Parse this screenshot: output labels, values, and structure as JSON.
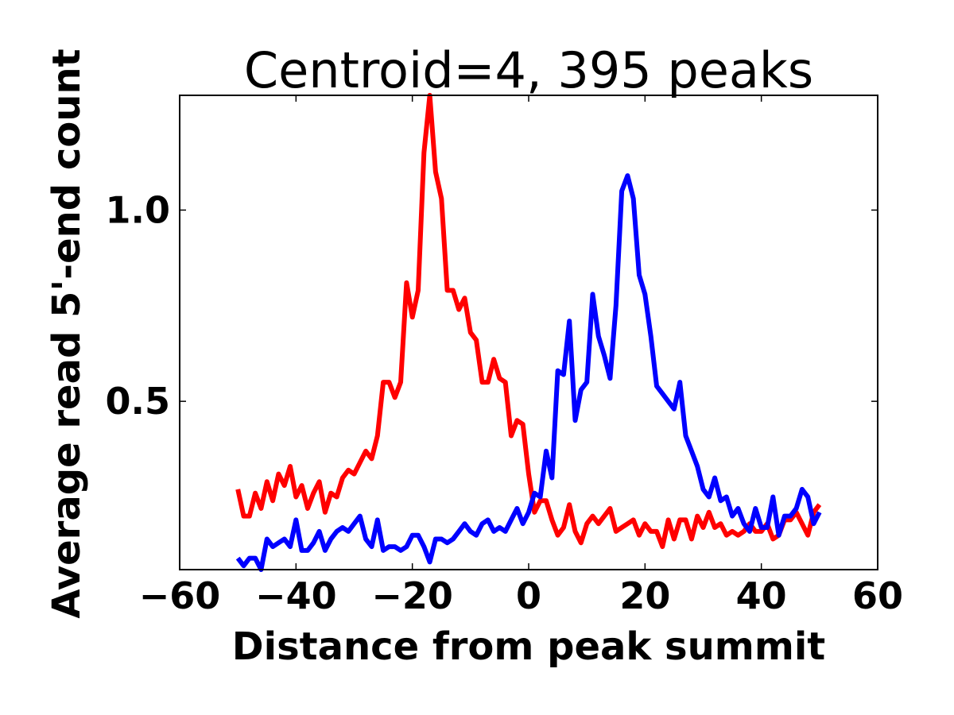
{
  "chart_data": {
    "type": "line",
    "title": "Centroid=4, 395 peaks",
    "xlabel": "Distance from peak summit",
    "ylabel": "Average read 5'-end count",
    "xlim": [
      -60,
      60
    ],
    "ylim": [
      0.06,
      1.3
    ],
    "xticks": [
      -60,
      -40,
      -20,
      0,
      20,
      40,
      60
    ],
    "xtick_labels": [
      "−60",
      "−40",
      "−20",
      "0",
      "20",
      "40",
      "60"
    ],
    "yticks": [
      0.5,
      1.0
    ],
    "ytick_labels": [
      "0.5",
      "1.0"
    ],
    "grid": false,
    "legend": false,
    "series": [
      {
        "name": "red",
        "color": "#ff0000",
        "x": [
          -50,
          -49,
          -48,
          -47,
          -46,
          -45,
          -44,
          -43,
          -42,
          -41,
          -40,
          -39,
          -38,
          -37,
          -36,
          -35,
          -34,
          -33,
          -32,
          -31,
          -30,
          -29,
          -28,
          -27,
          -26,
          -25,
          -24,
          -23,
          -22,
          -21,
          -20,
          -19,
          -18,
          -17,
          -16,
          -15,
          -14,
          -13,
          -12,
          -11,
          -10,
          -9,
          -8,
          -7,
          -6,
          -5,
          -4,
          -3,
          -2,
          -1,
          0,
          1,
          2,
          3,
          4,
          5,
          6,
          7,
          8,
          9,
          10,
          11,
          12,
          13,
          14,
          15,
          16,
          17,
          18,
          19,
          20,
          21,
          22,
          23,
          24,
          25,
          26,
          27,
          28,
          29,
          30,
          31,
          32,
          33,
          34,
          35,
          36,
          37,
          38,
          39,
          40,
          41,
          42,
          43,
          44,
          45,
          46,
          47,
          48,
          49,
          50
        ],
        "y": [
          0.27,
          0.2,
          0.2,
          0.26,
          0.22,
          0.29,
          0.24,
          0.31,
          0.28,
          0.33,
          0.25,
          0.28,
          0.22,
          0.26,
          0.29,
          0.21,
          0.26,
          0.25,
          0.3,
          0.32,
          0.31,
          0.34,
          0.37,
          0.35,
          0.41,
          0.55,
          0.55,
          0.51,
          0.55,
          0.81,
          0.72,
          0.79,
          1.15,
          1.3,
          1.1,
          1.03,
          0.79,
          0.79,
          0.74,
          0.77,
          0.68,
          0.66,
          0.55,
          0.55,
          0.61,
          0.56,
          0.55,
          0.41,
          0.45,
          0.44,
          0.31,
          0.21,
          0.24,
          0.24,
          0.19,
          0.15,
          0.17,
          0.23,
          0.16,
          0.13,
          0.18,
          0.2,
          0.18,
          0.2,
          0.22,
          0.16,
          0.17,
          0.18,
          0.19,
          0.15,
          0.18,
          0.16,
          0.16,
          0.12,
          0.19,
          0.14,
          0.19,
          0.19,
          0.14,
          0.2,
          0.17,
          0.21,
          0.17,
          0.18,
          0.15,
          0.16,
          0.15,
          0.16,
          0.18,
          0.16,
          0.16,
          0.18,
          0.14,
          0.15,
          0.19,
          0.19,
          0.21,
          0.18,
          0.15,
          0.21,
          0.23
        ]
      },
      {
        "name": "blue",
        "color": "#0000ff",
        "x": [
          -50,
          -49,
          -48,
          -47,
          -46,
          -45,
          -44,
          -43,
          -42,
          -41,
          -40,
          -39,
          -38,
          -37,
          -36,
          -35,
          -34,
          -33,
          -32,
          -31,
          -30,
          -29,
          -28,
          -27,
          -26,
          -25,
          -24,
          -23,
          -22,
          -21,
          -20,
          -19,
          -18,
          -17,
          -16,
          -15,
          -14,
          -13,
          -12,
          -11,
          -10,
          -9,
          -8,
          -7,
          -6,
          -5,
          -4,
          -3,
          -2,
          -1,
          0,
          1,
          2,
          3,
          4,
          5,
          6,
          7,
          8,
          9,
          10,
          11,
          12,
          13,
          14,
          15,
          16,
          17,
          18,
          19,
          20,
          21,
          22,
          23,
          24,
          25,
          26,
          27,
          28,
          29,
          30,
          31,
          32,
          33,
          34,
          35,
          36,
          37,
          38,
          39,
          40,
          41,
          42,
          43,
          44,
          45,
          46,
          47,
          48,
          49,
          50
        ],
        "y": [
          0.09,
          0.07,
          0.09,
          0.09,
          0.06,
          0.14,
          0.12,
          0.13,
          0.14,
          0.12,
          0.19,
          0.11,
          0.11,
          0.13,
          0.16,
          0.11,
          0.14,
          0.16,
          0.17,
          0.16,
          0.18,
          0.2,
          0.14,
          0.12,
          0.19,
          0.11,
          0.12,
          0.12,
          0.11,
          0.12,
          0.15,
          0.15,
          0.12,
          0.08,
          0.14,
          0.14,
          0.13,
          0.14,
          0.16,
          0.18,
          0.16,
          0.15,
          0.18,
          0.19,
          0.16,
          0.17,
          0.16,
          0.19,
          0.22,
          0.18,
          0.21,
          0.26,
          0.25,
          0.37,
          0.3,
          0.58,
          0.57,
          0.71,
          0.45,
          0.53,
          0.55,
          0.78,
          0.67,
          0.62,
          0.56,
          0.75,
          1.05,
          1.09,
          1.03,
          0.83,
          0.78,
          0.67,
          0.54,
          0.52,
          0.5,
          0.48,
          0.55,
          0.41,
          0.37,
          0.33,
          0.27,
          0.25,
          0.3,
          0.24,
          0.25,
          0.2,
          0.22,
          0.18,
          0.16,
          0.22,
          0.17,
          0.17,
          0.25,
          0.15,
          0.2,
          0.2,
          0.22,
          0.27,
          0.25,
          0.18,
          0.21
        ]
      }
    ]
  }
}
